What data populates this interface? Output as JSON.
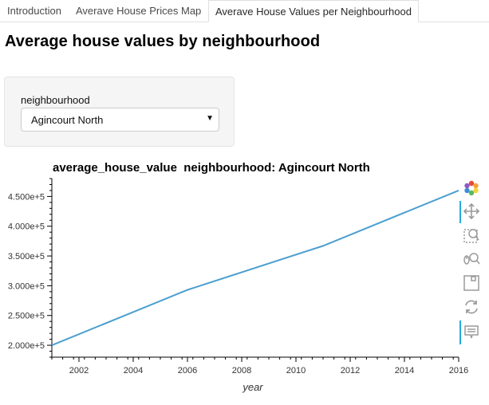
{
  "tabs": [
    {
      "label": "Introduction"
    },
    {
      "label": "Averave House Prices Map"
    },
    {
      "label": "Averave House Values per Neighbourhood",
      "active": true
    }
  ],
  "page_title": "Average house values by neighbourhood",
  "widget": {
    "label": "neighbourhood",
    "selected": "Agincourt North"
  },
  "plot_title": "average_house_value  neighbourhood: Agincourt North",
  "toolbar": {
    "tools": [
      {
        "name": "bokeh-logo-icon"
      },
      {
        "name": "pan-icon"
      },
      {
        "name": "box-zoom-icon"
      },
      {
        "name": "wheel-zoom-icon"
      },
      {
        "name": "save-icon"
      },
      {
        "name": "reset-icon"
      },
      {
        "name": "hover-icon"
      }
    ]
  },
  "chart_data": {
    "type": "line",
    "title": "average_house_value  neighbourhood: Agincourt North",
    "xlabel": "year",
    "ylabel": "",
    "x": [
      2001,
      2006,
      2011,
      2016
    ],
    "series": [
      {
        "values": [
          200000,
          293000,
          367000,
          460000
        ],
        "color": "#4c9fd0"
      }
    ],
    "xlim": [
      2001,
      2016
    ],
    "ylim": [
      180000,
      480000
    ],
    "xticks": [
      2002,
      2004,
      2006,
      2008,
      2010,
      2012,
      2014,
      2016
    ],
    "yticks": [
      200000,
      250000,
      300000,
      350000,
      400000,
      450000
    ],
    "ytick_labels": [
      "2.000e+5",
      "2.500e+5",
      "3.000e+5",
      "3.500e+5",
      "4.000e+5",
      "4.500e+5"
    ],
    "grid": false
  }
}
